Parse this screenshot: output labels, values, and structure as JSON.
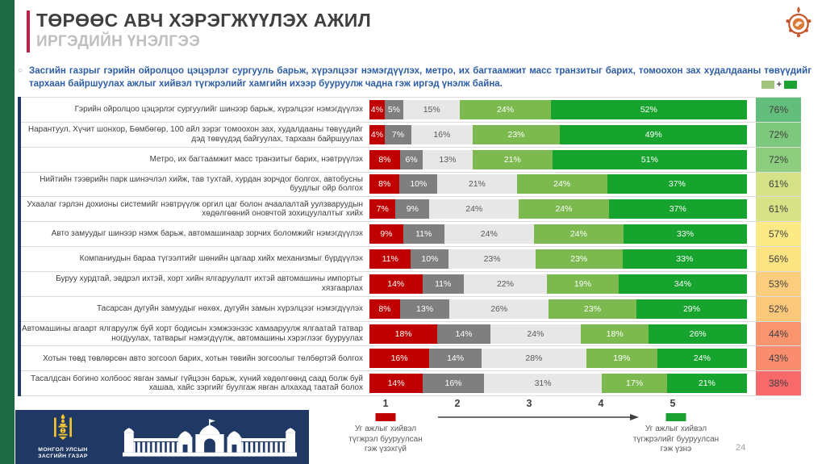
{
  "header": {
    "title": "ТӨРӨӨС АВЧ ХЭРЭГЖҮҮЛЭХ АЖИЛ",
    "subtitle": "ИРГЭДИЙН ҮНЭЛГЭЭ"
  },
  "intro": {
    "bullet": "○",
    "text": "Засгийн газрыг гэрийн ойролцоо цэцэрлэг сургууль барьж, хүрэлцээг нэмэгдүүлэх, метро, их багтаамжит масс транзитыг барих, томоохон зах худалдааны төвүүдийг тархаан байршуулах ажлыг хийвэл түгжрэлийг хамгийн ихээр бууруулж чадна гэж иргэд үнэлж байна."
  },
  "legend_topright": {
    "separator": "+",
    "light_color": "#A2C37B",
    "dark_color": "#1CA233"
  },
  "chart_data": {
    "type": "bar",
    "stacked": true,
    "orientation": "horizontal",
    "title": "",
    "categories": [
      "Гэрийн ойролцоо цэцэрлэг сургуулийг шинээр барьж, хүрэлцээг нэмэгдүүлэх",
      "Нарантуул, Хүчит шонхор, Бөмбөгөр, 100 айл зэрэг томоохон зах, худалдааны төвүүдийг дэд төвүүдэд байгуулах, тархаан байршуулах",
      "Метро, их багтаамжит масс транзитыг барих, нэвтрүүлэх",
      "Нийтийн тээврийн парк шинэчлэл хийж, тав тухтай, хурдан зорчдог болгох, автобусны буудлыг ойр болгох",
      "Ухаалаг гэрлэн дохионы системийг нэвтрүүлж оргил цаг болон ачаалалтай уулзваруудын хөдөлгөөний оновчтой зохицуулалтыг хийх",
      "Авто замуудыг шинээр нэмж барьж, автомашинаар зорчих боломжийг нэмэгдүүлэх",
      "Компаниудын бараа түгээлтийг шөнийн цагаар хийх механизмыг бүрдүүлэх",
      "Буруу хурдтай, эвдрэл ихтэй, хорт хийн ялгаруулалт ихтэй автомашины импортыг хязгаарлах",
      "Тасарсан дугуйн замуудыг нөхөх, дугуйн замын хүрэлцээг нэмэгдүүлэх",
      "Автомашины агаарт ялгаруулж буй хорт бодисын хэмжээнээс хамааруулж ялгаатай татвар ногдуулах, татварыг нэмэгдүүлж, автомашины хэрэглээг бууруулах",
      "Хотын төвд төвлөрсөн авто зогсоол барих, хотын төвийн зогсоолыг төлбөртэй болгох",
      "Тасалдсан богино холбоос явган замыг гүйцээн барьж, хүний хөдөлгөөнд саад болж буй хашаа, хайс зэргийг буулгаж явган алхахад таатай болох"
    ],
    "series": [
      {
        "name": "1",
        "color": "#C00000",
        "text_color": "#FFFFFF",
        "values": [
          4,
          4,
          8,
          8,
          7,
          9,
          11,
          14,
          8,
          18,
          16,
          14
        ]
      },
      {
        "name": "2",
        "color": "#7F7F7F",
        "text_color": "#FFFFFF",
        "values": [
          5,
          7,
          6,
          10,
          9,
          11,
          10,
          11,
          13,
          14,
          14,
          16
        ]
      },
      {
        "name": "3",
        "color": "#E8E7E7",
        "text_color": "#595959",
        "values": [
          15,
          16,
          13,
          21,
          24,
          24,
          23,
          22,
          26,
          24,
          28,
          31
        ]
      },
      {
        "name": "4",
        "color": "#7CB94E",
        "text_color": "#FFFFFF",
        "values": [
          24,
          23,
          21,
          24,
          24,
          24,
          23,
          19,
          23,
          18,
          19,
          17
        ]
      },
      {
        "name": "5",
        "color": "#17A42E",
        "text_color": "#FFFFFF",
        "values": [
          52,
          49,
          51,
          37,
          37,
          33,
          33,
          34,
          29,
          26,
          24,
          21
        ]
      }
    ],
    "totals": {
      "label": "4+5",
      "values": [
        76,
        72,
        72,
        61,
        61,
        57,
        56,
        53,
        52,
        44,
        43,
        38
      ],
      "colors": [
        "#63BE7B",
        "#7EC87D",
        "#8CCD7E",
        "#D5E288",
        "#D8E388",
        "#FBEA85",
        "#FCE483",
        "#FCCD7D",
        "#FBC77B",
        "#F9946F",
        "#F98D6E",
        "#F8696B"
      ]
    },
    "x_axis": {
      "ticks": [
        "1",
        "2",
        "3",
        "4",
        "5"
      ]
    },
    "xlabel": "",
    "ylabel": "",
    "xlim": [
      0,
      100
    ],
    "grid": false,
    "legend_position": "top-right"
  },
  "axis_captions": {
    "left": {
      "swatch_color": "#C00000",
      "lines": [
        "Уг ажлыг хийвэл",
        "түгжрэл бууруулсан",
        "гэж үзэхгүй"
      ]
    },
    "right": {
      "swatch_color": "#1CA233",
      "lines": [
        "Уг ажлыг хийвэл",
        "түгжрэлийг бууруулсан",
        "гэж үзнэ"
      ]
    }
  },
  "footer": {
    "gov_text_line1": "МОНГОЛ УЛСЫН",
    "gov_text_line2": "ЗАСГИЙН ГАЗАР",
    "page_number": "24"
  }
}
